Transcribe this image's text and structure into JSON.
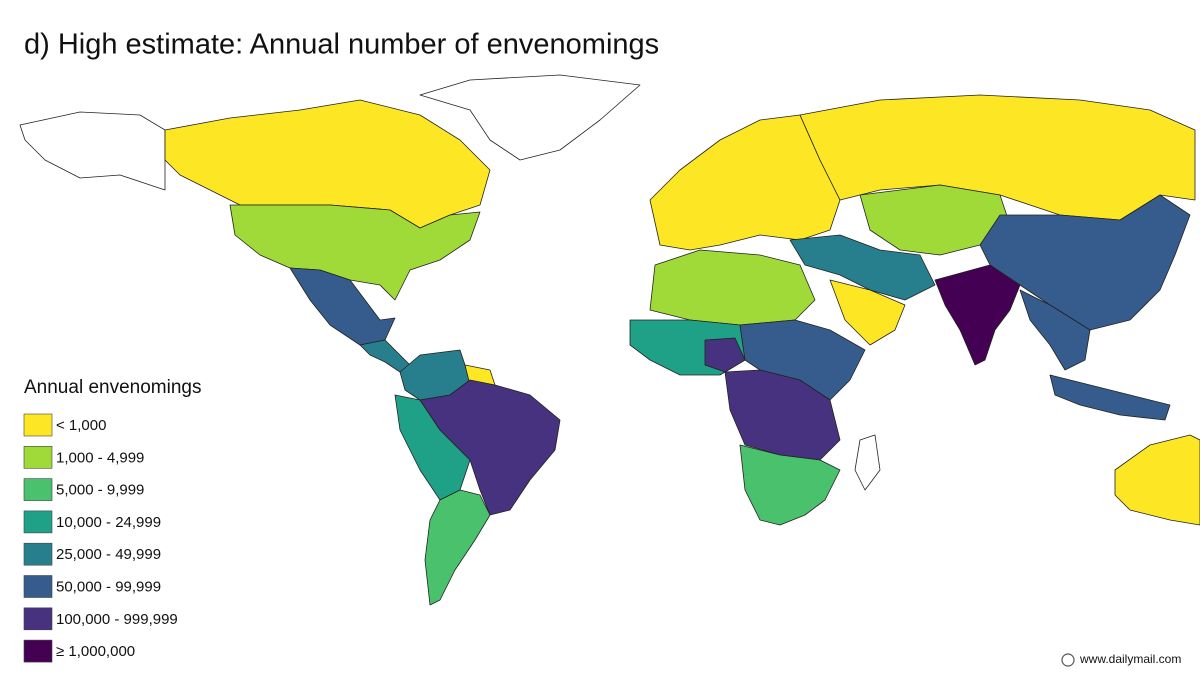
{
  "title": "d) High estimate: Annual number of envenomings",
  "legend": {
    "title": "Annual envenomings",
    "items": [
      {
        "label": "< 1,000",
        "color": "#fde725"
      },
      {
        "label": "1,000 - 4,999",
        "color": "#a0da39"
      },
      {
        "label": "5,000 - 9,999",
        "color": "#4ac16d"
      },
      {
        "label": "10,000 - 24,999",
        "color": "#1fa187"
      },
      {
        "label": "25,000 - 49,999",
        "color": "#277f8e"
      },
      {
        "label": "50,000 - 99,999",
        "color": "#365c8d"
      },
      {
        "label": "100,000 - 999,999",
        "color": "#46327e"
      },
      {
        "label": "≥ 1,000,000",
        "color": "#440154"
      }
    ]
  },
  "footer": {
    "source": "www.dailymail.com"
  }
}
